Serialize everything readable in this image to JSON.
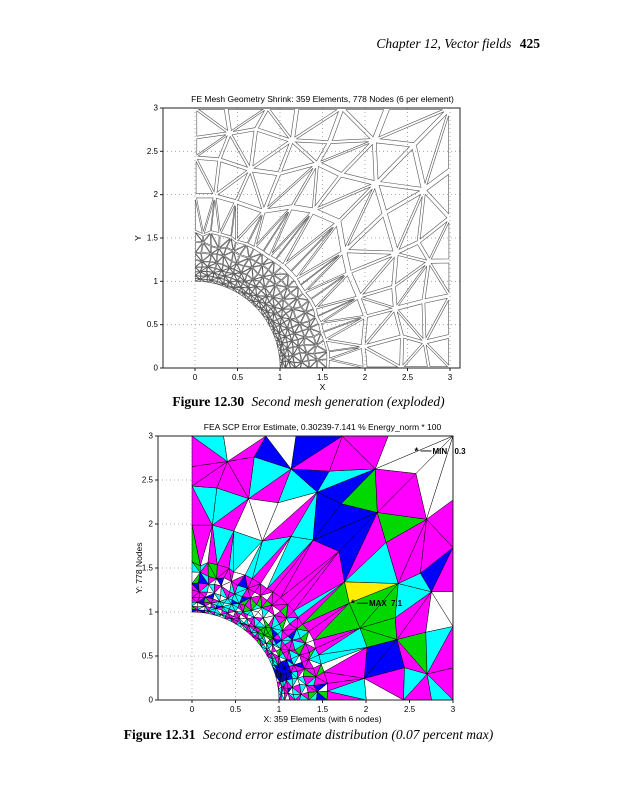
{
  "page_header": {
    "chapter_title": "Chapter 12, Vector fields",
    "page_number": "425"
  },
  "chart_data": [
    {
      "type": "mesh",
      "figure_number": "Figure 12.30",
      "caption": "Second mesh generation (exploded)",
      "title": "FE Mesh Geometry Shrink: 359 Elements, 778 Nodes (6 per element)",
      "xlabel": "X",
      "ylabel": "Y",
      "xlim": [
        -0.38,
        3.12
      ],
      "ylim": [
        0,
        3
      ],
      "xticks": [
        0,
        0.5,
        1,
        1.5,
        2,
        2.5,
        3
      ],
      "yticks": [
        0,
        0.5,
        1,
        1.5,
        2,
        2.5,
        3
      ],
      "grid": "dotted",
      "render": "shrunken-outline-triangles",
      "shrink_factor": 0.84,
      "elements": 359,
      "nodes": 778,
      "nodes_per_element": 6,
      "domain": "3x3 square plate with quarter-circle hole of radius 1 at origin, mesh graded fine toward hole"
    },
    {
      "type": "mesh",
      "figure_number": "Figure 12.31",
      "caption": "Second error estimate distribution (0.07 percent max)",
      "title": "FEA SCP Error Estimate, 0.30239-7.141 % Energy_norm * 100",
      "xlabel": "X: 359 Elements (with 6 nodes)",
      "ylabel": "Y: 778 Nodes",
      "xlim": [
        -0.39,
        3.0
      ],
      "ylim": [
        0,
        3
      ],
      "xticks": [
        0,
        0.5,
        1,
        1.5,
        2,
        2.5,
        3
      ],
      "yticks": [
        0,
        0.5,
        1,
        1.5,
        2,
        2.5,
        3
      ],
      "grid": "dotted",
      "render": "filled-triangles",
      "error_range_percent": [
        0.30239,
        7.141
      ],
      "annotations": [
        {
          "marker": "*",
          "label": "MIN",
          "value": "0.3",
          "x": 2.58,
          "y": 2.83
        },
        {
          "marker": "*",
          "label": "MAX",
          "value": "7.1",
          "x": 1.85,
          "y": 1.1
        }
      ],
      "palette": {
        "magenta": "#FF00FF",
        "cyan": "#00FFFF",
        "white": "#FFFFFF",
        "blue": "#0000FF",
        "green": "#00D800",
        "red": "#FF0000",
        "yellow": "#FFEE00"
      },
      "color_weights": [
        [
          "magenta",
          0.53
        ],
        [
          "cyan",
          0.15
        ],
        [
          "white",
          0.12
        ],
        [
          "blue",
          0.1
        ],
        [
          "green",
          0.1
        ]
      ],
      "inner_weights": [
        [
          "magenta",
          0.36
        ],
        [
          "cyan",
          0.34
        ],
        [
          "white",
          0.2
        ],
        [
          "blue",
          0.05
        ],
        [
          "green",
          0.05
        ]
      ],
      "inner_radius": 1.3,
      "color_seed": 77,
      "hotspots": [
        {
          "x": 1.84,
          "y": 1.13,
          "r": 0.18,
          "color": "red"
        },
        {
          "x": 2.05,
          "y": 1.27,
          "r": 0.16,
          "color": "yellow"
        },
        {
          "x": 2.2,
          "y": 1.12,
          "r": 0.12,
          "color": "green"
        },
        {
          "x": 1.78,
          "y": 0.92,
          "r": 0.12,
          "color": "green"
        },
        {
          "x": 2.15,
          "y": 0.9,
          "r": 0.22,
          "color": "green"
        },
        {
          "x": 2.3,
          "y": 0.65,
          "r": 0.18,
          "color": "green"
        },
        {
          "x": 2.2,
          "y": 0.5,
          "r": 0.12,
          "color": "blue"
        },
        {
          "x": 2.45,
          "y": 1.3,
          "r": 0.25,
          "color": "cyan"
        },
        {
          "x": 1.95,
          "y": 1.5,
          "r": 0.2,
          "color": "cyan"
        },
        {
          "x": 1.6,
          "y": 2.1,
          "r": 0.28,
          "color": "blue"
        },
        {
          "x": 1.78,
          "y": 1.72,
          "r": 0.18,
          "color": "blue"
        },
        {
          "x": 1.35,
          "y": 1.87,
          "r": 0.13,
          "color": "green"
        },
        {
          "x": 1.3,
          "y": 2.2,
          "r": 0.22,
          "color": "cyan"
        },
        {
          "x": 1.55,
          "y": 2.45,
          "r": 0.18,
          "color": "cyan"
        },
        {
          "x": 0.75,
          "y": 2.0,
          "r": 0.26,
          "color": "white"
        },
        {
          "x": 0.3,
          "y": 2.35,
          "r": 0.18,
          "color": "cyan"
        },
        {
          "x": 1.45,
          "y": 2.52,
          "r": 0.15,
          "color": "blue"
        },
        {
          "x": 2.65,
          "y": 2.8,
          "r": 0.35,
          "color": "white"
        },
        {
          "x": 2.95,
          "y": 2.55,
          "r": 0.2,
          "color": "white"
        },
        {
          "x": 0.85,
          "y": 0.78,
          "r": 0.08,
          "color": "green"
        },
        {
          "x": 1.05,
          "y": 0.32,
          "r": 0.1,
          "color": "blue"
        },
        {
          "x": 2.75,
          "y": 0.35,
          "r": 0.25,
          "color": "magenta"
        }
      ]
    }
  ],
  "mesh_params": {
    "seed": 20,
    "inner_radii": [
      1,
      1.032,
      1.07,
      1.115,
      1.17,
      1.24,
      1.325,
      1.43,
      1.55
    ],
    "inner_m": 24,
    "outer_fracs": [
      0,
      0.3,
      0.57,
      0.8,
      1
    ],
    "outer_m": 12,
    "jitter": 0.22
  },
  "style_colors": {
    "axis": "#222222",
    "grid": "#999999",
    "mesh_outline_fig1": "#555555",
    "mesh_edge_fig2": "#000000",
    "text": "#000000"
  }
}
